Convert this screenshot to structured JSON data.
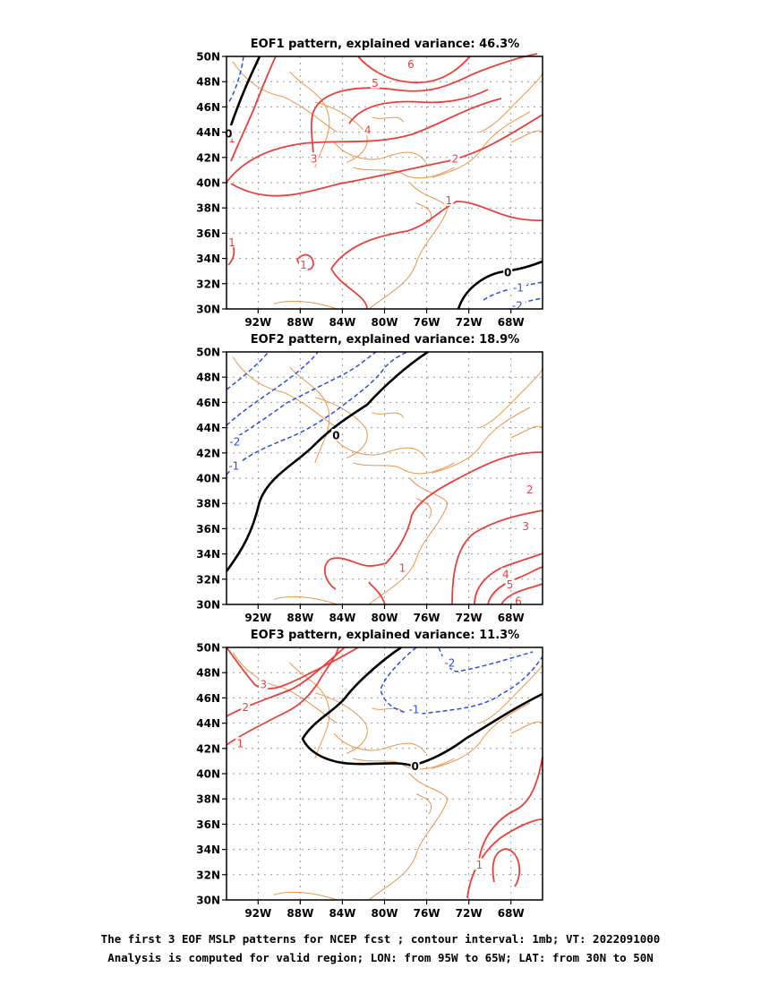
{
  "panels": [
    {
      "title": "EOF1 pattern, explained variance: 46.3%"
    },
    {
      "title": "EOF2 pattern, explained variance: 18.9%"
    },
    {
      "title": "EOF3 pattern, explained variance: 11.3%"
    }
  ],
  "axes": {
    "lat_labels": [
      "50N",
      "48N",
      "46N",
      "44N",
      "42N",
      "40N",
      "38N",
      "36N",
      "34N",
      "32N",
      "30N"
    ],
    "lon_labels": [
      "92W",
      "88W",
      "84W",
      "80W",
      "76W",
      "72W",
      "68W"
    ]
  },
  "caption": {
    "line1": "The first 3 EOF MSLP patterns for NCEP fcst ; contour interval: 1mb; VT: 2022091000",
    "line2": "Analysis is computed for valid region; LON: from 95W to 65W; LAT: from 30N to 50N"
  },
  "colors": {
    "positive": "#e8403c",
    "negative": "#2b4fdc",
    "zero": "#000000",
    "coastline": "#e8964a"
  },
  "map_data": {
    "region": {
      "lon_range": [
        -95,
        -65
      ],
      "lat_range": [
        30,
        50
      ]
    },
    "contour_interval_mb": 1,
    "panels": [
      {
        "contour_labels": [
          {
            "text": "6",
            "lon": -77.5,
            "lat": 49.4
          },
          {
            "text": "5",
            "lon": -80.9,
            "lat": 47.9
          },
          {
            "text": "4",
            "lon": -81.6,
            "lat": 44.2
          },
          {
            "text": "3",
            "lon": -86.7,
            "lat": 41.9
          },
          {
            "text": "2",
            "lon": -73.3,
            "lat": 41.9
          },
          {
            "text": "1",
            "lon": -73.9,
            "lat": 38.6
          },
          {
            "text": "1",
            "lon": -94.5,
            "lat": 35.3
          },
          {
            "text": "1",
            "lon": -87.7,
            "lat": 33.5
          },
          {
            "text": "1",
            "lon": -94.5,
            "lat": 43.5
          },
          {
            "text": "0",
            "lon": -94.8,
            "lat": 43.9
          },
          {
            "text": "0",
            "lon": -68.3,
            "lat": 32.9
          },
          {
            "text": "-1",
            "lon": -67.3,
            "lat": 31.7
          },
          {
            "text": "-2",
            "lon": -67.4,
            "lat": 30.3
          }
        ]
      },
      {
        "contour_labels": [
          {
            "text": "0",
            "lon": -84.6,
            "lat": 43.4
          },
          {
            "text": "-2",
            "lon": -94.2,
            "lat": 42.9
          },
          {
            "text": "-1",
            "lon": -94.3,
            "lat": 41.0
          },
          {
            "text": "2",
            "lon": -66.2,
            "lat": 39.1
          },
          {
            "text": "3",
            "lon": -66.6,
            "lat": 36.2
          },
          {
            "text": "1",
            "lon": -78.3,
            "lat": 32.9
          },
          {
            "text": "4",
            "lon": -68.5,
            "lat": 32.4
          },
          {
            "text": "5",
            "lon": -68.1,
            "lat": 31.6
          },
          {
            "text": "6",
            "lon": -67.3,
            "lat": 30.3
          }
        ]
      },
      {
        "contour_labels": [
          {
            "text": "3",
            "lon": -91.5,
            "lat": 47.1
          },
          {
            "text": "2",
            "lon": -93.2,
            "lat": 45.3
          },
          {
            "text": "1",
            "lon": -93.7,
            "lat": 42.4
          },
          {
            "text": "-1",
            "lon": -77.2,
            "lat": 45.1
          },
          {
            "text": "-2",
            "lon": -73.8,
            "lat": 48.8
          },
          {
            "text": "0",
            "lon": -77.1,
            "lat": 40.6
          },
          {
            "text": "1",
            "lon": -71.0,
            "lat": 32.8
          }
        ]
      }
    ]
  }
}
